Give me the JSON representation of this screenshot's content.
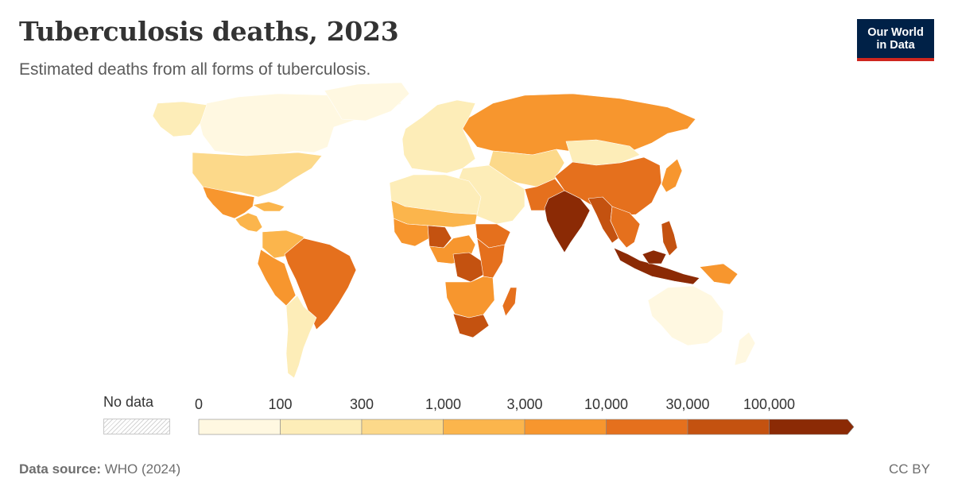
{
  "header": {
    "title": "Tuberculosis deaths, 2023",
    "subtitle": "Estimated deaths from all forms of tuberculosis."
  },
  "logo": {
    "line1": "Our World",
    "line2": "in Data"
  },
  "legend": {
    "no_data_label": "No data",
    "bins": [
      {
        "from": 0,
        "to": 100,
        "color": "#fff8e1"
      },
      {
        "from": 100,
        "to": 300,
        "color": "#fdedb8"
      },
      {
        "from": 300,
        "to": 1000,
        "color": "#fcd98a"
      },
      {
        "from": 1000,
        "to": 3000,
        "color": "#fbb54c"
      },
      {
        "from": 3000,
        "to": 10000,
        "color": "#f7962e"
      },
      {
        "from": 10000,
        "to": 30000,
        "color": "#e5701d"
      },
      {
        "from": 30000,
        "to": 100000,
        "color": "#c45210"
      },
      {
        "from": 100000,
        "to": null,
        "color": "#8b2a05"
      }
    ],
    "tick_labels": [
      "0",
      "100",
      "300",
      "1,000",
      "3,000",
      "10,000",
      "30,000",
      "100,000"
    ]
  },
  "map_regions": [
    {
      "name": "North America (Canada/Alaska)",
      "color": "#fff8e1"
    },
    {
      "name": "Greenland",
      "color": "#fff8e1"
    },
    {
      "name": "Alaska",
      "color": "#fdedb8"
    },
    {
      "name": "United States",
      "color": "#fcd98a"
    },
    {
      "name": "Mexico",
      "color": "#f7962e"
    },
    {
      "name": "Central America",
      "color": "#fbb54c"
    },
    {
      "name": "Caribbean",
      "color": "#fbb54c"
    },
    {
      "name": "Brazil",
      "color": "#e5701d"
    },
    {
      "name": "Peru/Bolivia",
      "color": "#f7962e"
    },
    {
      "name": "Colombia/Venezuela",
      "color": "#fbb54c"
    },
    {
      "name": "Argentina/Chile",
      "color": "#fdedb8"
    },
    {
      "name": "Europe",
      "color": "#fdedb8"
    },
    {
      "name": "Russia",
      "color": "#f7962e"
    },
    {
      "name": "Central Asia",
      "color": "#fcd98a"
    },
    {
      "name": "Mongolia",
      "color": "#fdedb8"
    },
    {
      "name": "China",
      "color": "#e5701d"
    },
    {
      "name": "Japan",
      "color": "#f7962e"
    },
    {
      "name": "Middle East",
      "color": "#fdedb8"
    },
    {
      "name": "Pakistan/Afghanistan",
      "color": "#e5701d"
    },
    {
      "name": "India",
      "color": "#8b2a05"
    },
    {
      "name": "Bangladesh/Myanmar",
      "color": "#c45210"
    },
    {
      "name": "Southeast Asia",
      "color": "#e5701d"
    },
    {
      "name": "Philippines",
      "color": "#c45210"
    },
    {
      "name": "Indonesia",
      "color": "#8b2a05"
    },
    {
      "name": "Papua New Guinea",
      "color": "#f7962e"
    },
    {
      "name": "Australia",
      "color": "#fff8e1"
    },
    {
      "name": "New Zealand",
      "color": "#fff8e1"
    },
    {
      "name": "North Africa",
      "color": "#fdedb8"
    },
    {
      "name": "Sahel",
      "color": "#fbb54c"
    },
    {
      "name": "West Africa",
      "color": "#f7962e"
    },
    {
      "name": "Nigeria",
      "color": "#c45210"
    },
    {
      "name": "Central Africa",
      "color": "#f7962e"
    },
    {
      "name": "DR Congo",
      "color": "#c45210"
    },
    {
      "name": "Ethiopia",
      "color": "#e5701d"
    },
    {
      "name": "East Africa",
      "color": "#e5701d"
    },
    {
      "name": "Southern Africa",
      "color": "#f7962e"
    },
    {
      "name": "South Africa",
      "color": "#c45210"
    },
    {
      "name": "Madagascar",
      "color": "#e5701d"
    }
  ],
  "footer": {
    "source_label": "Data source:",
    "source_value": "WHO (2024)",
    "license": "CC BY"
  }
}
